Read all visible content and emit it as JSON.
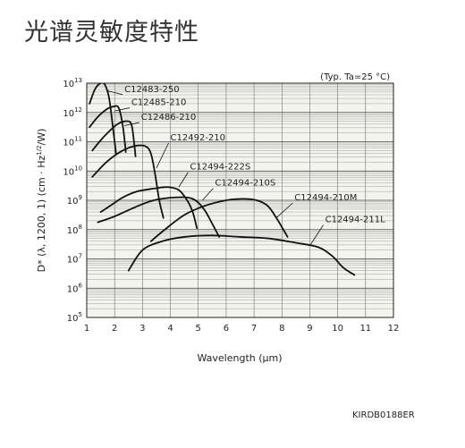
{
  "page": {
    "title": "光谱灵敏度特性",
    "figure_code": "KIRDB0188ER"
  },
  "chart_data": {
    "type": "line",
    "xlabel": "Wavelength (μm)",
    "ylabel": "D* (λ, 1200, 1) (cm · Hz^1/2/W)",
    "condition": "(Typ. Ta=25 °C)",
    "xlim": [
      1,
      12
    ],
    "ylim_log10": [
      5,
      13
    ],
    "x_ticks": [
      1,
      2,
      3,
      4,
      5,
      6,
      7,
      8,
      9,
      10,
      11,
      12
    ],
    "y_ticks": [
      5,
      6,
      7,
      8,
      9,
      10,
      11,
      12,
      13
    ],
    "grid": true,
    "series": [
      {
        "name": "C12483-250",
        "points": [
          [
            1.1,
            12.3
          ],
          [
            1.3,
            12.8
          ],
          [
            1.5,
            13.0
          ],
          [
            1.65,
            12.95
          ],
          [
            1.8,
            12.5
          ],
          [
            1.95,
            11.4
          ],
          [
            2.05,
            10.6
          ]
        ],
        "label_pos": [
          2.35,
          12.7
        ],
        "leader_to": [
          1.7,
          12.75
        ]
      },
      {
        "name": "C12485-210",
        "points": [
          [
            1.1,
            11.5
          ],
          [
            1.4,
            11.85
          ],
          [
            1.7,
            12.1
          ],
          [
            1.95,
            12.2
          ],
          [
            2.15,
            12.15
          ],
          [
            2.3,
            11.5
          ],
          [
            2.4,
            10.65
          ]
        ],
        "label_pos": [
          2.6,
          12.25
        ],
        "leader_to": [
          2.0,
          12.05
        ]
      },
      {
        "name": "C12486-210",
        "points": [
          [
            1.2,
            10.7
          ],
          [
            1.5,
            11.05
          ],
          [
            1.8,
            11.35
          ],
          [
            2.1,
            11.6
          ],
          [
            2.4,
            11.7
          ],
          [
            2.6,
            11.6
          ],
          [
            2.7,
            10.95
          ],
          [
            2.75,
            10.5
          ]
        ],
        "label_pos": [
          2.95,
          11.75
        ],
        "leader_to": [
          2.35,
          11.55
        ]
      },
      {
        "name": "C12492-210",
        "points": [
          [
            1.2,
            9.8
          ],
          [
            1.7,
            10.3
          ],
          [
            2.2,
            10.65
          ],
          [
            2.7,
            10.85
          ],
          [
            3.1,
            10.85
          ],
          [
            3.3,
            10.6
          ],
          [
            3.45,
            9.9
          ],
          [
            3.6,
            9.0
          ],
          [
            3.75,
            8.4
          ]
        ],
        "label_pos": [
          4.0,
          11.05
        ],
        "leader_to": [
          3.5,
          10.1
        ]
      },
      {
        "name": "C12494-222S",
        "points": [
          [
            1.5,
            8.6
          ],
          [
            1.9,
            8.85
          ],
          [
            2.3,
            9.1
          ],
          [
            2.8,
            9.3
          ],
          [
            3.4,
            9.4
          ],
          [
            3.9,
            9.45
          ],
          [
            4.3,
            9.35
          ],
          [
            4.6,
            9.0
          ],
          [
            4.8,
            8.6
          ],
          [
            4.95,
            8.05
          ]
        ],
        "label_pos": [
          4.7,
          10.05
        ],
        "leader_to": [
          4.3,
          9.45
        ]
      },
      {
        "name": "C12494-210S",
        "points": [
          [
            1.4,
            8.25
          ],
          [
            2.0,
            8.45
          ],
          [
            2.7,
            8.75
          ],
          [
            3.4,
            9.0
          ],
          [
            4.2,
            9.1
          ],
          [
            4.8,
            9.05
          ],
          [
            5.2,
            8.7
          ],
          [
            5.5,
            8.2
          ],
          [
            5.75,
            7.75
          ]
        ],
        "label_pos": [
          5.6,
          9.5
        ],
        "leader_to": [
          5.15,
          9.0
        ]
      },
      {
        "name": "C12494-210M",
        "points": [
          [
            3.3,
            7.6
          ],
          [
            3.8,
            8.0
          ],
          [
            4.5,
            8.5
          ],
          [
            5.2,
            8.8
          ],
          [
            6.0,
            9.0
          ],
          [
            6.6,
            9.05
          ],
          [
            7.1,
            9.0
          ],
          [
            7.5,
            8.8
          ],
          [
            7.8,
            8.4
          ],
          [
            8.05,
            8.0
          ],
          [
            8.2,
            7.75
          ]
        ],
        "label_pos": [
          8.45,
          9.0
        ],
        "leader_to": [
          7.8,
          8.4
        ]
      },
      {
        "name": "C12494-211L",
        "points": [
          [
            2.5,
            6.6
          ],
          [
            3.0,
            7.3
          ],
          [
            3.7,
            7.6
          ],
          [
            4.5,
            7.75
          ],
          [
            5.5,
            7.8
          ],
          [
            6.5,
            7.75
          ],
          [
            7.5,
            7.7
          ],
          [
            8.5,
            7.55
          ],
          [
            9.3,
            7.4
          ],
          [
            9.8,
            7.1
          ],
          [
            10.2,
            6.7
          ],
          [
            10.6,
            6.45
          ]
        ],
        "label_pos": [
          9.55,
          8.25
        ],
        "leader_to": [
          9.0,
          7.45
        ]
      }
    ]
  }
}
